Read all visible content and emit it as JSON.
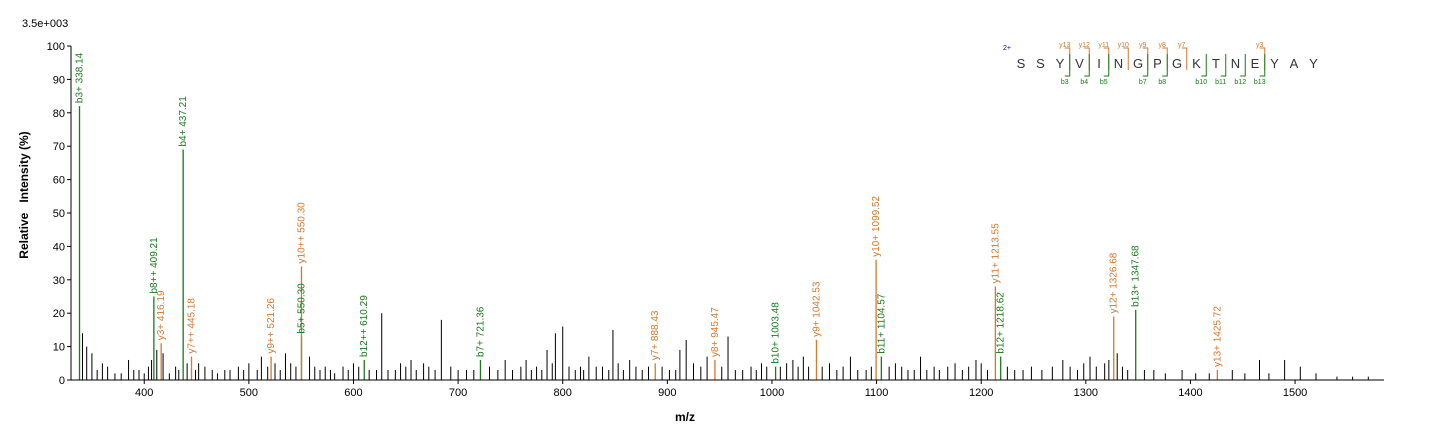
{
  "chart_data": {
    "type": "bar",
    "scale_label": "3.5e+003",
    "xlabel": "m/z",
    "ylabel": "Relative   Intensity (%)",
    "xlim": [
      330,
      1585
    ],
    "ylim": [
      0,
      100
    ],
    "x_ticks": [
      400,
      500,
      600,
      700,
      800,
      900,
      1000,
      1100,
      1200,
      1300,
      1400,
      1500
    ],
    "y_ticks": [
      0,
      10,
      20,
      30,
      40,
      50,
      60,
      70,
      80,
      90,
      100
    ],
    "colors": {
      "b_ion": "#1a7a1a",
      "y_ion": "#d9772b",
      "unassigned": "#000000",
      "charge": "#0000aa"
    },
    "annotated_peaks": [
      {
        "label": "b3+ 338.14",
        "mz": 338.14,
        "intensity": 82,
        "ion": "b"
      },
      {
        "label": "b8++ 409.21",
        "mz": 409.21,
        "intensity": 25,
        "ion": "b"
      },
      {
        "label": "y3+ 416.19",
        "mz": 416.19,
        "intensity": 11,
        "ion": "y"
      },
      {
        "label": "b4+ 437.21",
        "mz": 437.21,
        "intensity": 69,
        "ion": "b"
      },
      {
        "label": "y7++ 445.18",
        "mz": 445.18,
        "intensity": 7,
        "ion": "y"
      },
      {
        "label": "y9++ 521.26",
        "mz": 521.26,
        "intensity": 7,
        "ion": "y"
      },
      {
        "label": "b5+ 550.30",
        "mz": 550.3,
        "intensity": 13,
        "ion": "b"
      },
      {
        "label": "y10++ 550.30",
        "mz": 550.3,
        "intensity": 34,
        "ion": "y"
      },
      {
        "label": "b12++ 610.29",
        "mz": 610.29,
        "intensity": 6,
        "ion": "b"
      },
      {
        "label": "b7+ 721.36",
        "mz": 721.36,
        "intensity": 6,
        "ion": "b"
      },
      {
        "label": "y7+ 888.43",
        "mz": 888.43,
        "intensity": 5,
        "ion": "y"
      },
      {
        "label": "y8+ 945.47",
        "mz": 945.47,
        "intensity": 6,
        "ion": "y"
      },
      {
        "label": "b10+ 1003.48",
        "mz": 1003.48,
        "intensity": 4,
        "ion": "b"
      },
      {
        "label": "y9+ 1042.53",
        "mz": 1042.53,
        "intensity": 12,
        "ion": "y"
      },
      {
        "label": "y10+ 1099.52",
        "mz": 1099.52,
        "intensity": 36,
        "ion": "y"
      },
      {
        "label": "b11+ 1104.57",
        "mz": 1104.57,
        "intensity": 7,
        "ion": "b"
      },
      {
        "label": "y11+ 1213.55",
        "mz": 1213.55,
        "intensity": 28,
        "ion": "y"
      },
      {
        "label": "b12+ 1218.62",
        "mz": 1218.62,
        "intensity": 7,
        "ion": "b"
      },
      {
        "label": "y12+ 1326.68",
        "mz": 1326.68,
        "intensity": 19,
        "ion": "y"
      },
      {
        "label": "b13+ 1347.68",
        "mz": 1347.68,
        "intensity": 21,
        "ion": "b"
      },
      {
        "label": "y13+ 1425.72",
        "mz": 1425.72,
        "intensity": 3,
        "ion": "y"
      }
    ],
    "unassigned_peaks": [
      [
        341,
        14
      ],
      [
        345,
        10
      ],
      [
        350,
        8
      ],
      [
        355,
        3
      ],
      [
        360,
        5
      ],
      [
        365,
        4
      ],
      [
        372,
        2
      ],
      [
        378,
        2
      ],
      [
        385,
        6
      ],
      [
        390,
        3
      ],
      [
        395,
        3
      ],
      [
        400,
        2
      ],
      [
        404,
        4
      ],
      [
        407,
        6
      ],
      [
        412,
        9
      ],
      [
        418,
        8
      ],
      [
        424,
        2
      ],
      [
        430,
        4
      ],
      [
        433,
        3
      ],
      [
        441,
        5
      ],
      [
        449,
        3
      ],
      [
        452,
        5
      ],
      [
        458,
        4
      ],
      [
        465,
        3
      ],
      [
        470,
        2
      ],
      [
        477,
        3
      ],
      [
        482,
        3
      ],
      [
        490,
        4
      ],
      [
        495,
        3
      ],
      [
        500,
        5
      ],
      [
        508,
        3
      ],
      [
        512,
        7
      ],
      [
        518,
        4
      ],
      [
        525,
        5
      ],
      [
        530,
        3
      ],
      [
        535,
        8
      ],
      [
        540,
        5
      ],
      [
        545,
        4
      ],
      [
        558,
        7
      ],
      [
        563,
        4
      ],
      [
        568,
        3
      ],
      [
        573,
        4
      ],
      [
        578,
        3
      ],
      [
        582,
        2
      ],
      [
        590,
        4
      ],
      [
        595,
        3
      ],
      [
        600,
        5
      ],
      [
        605,
        4
      ],
      [
        615,
        3
      ],
      [
        622,
        3
      ],
      [
        627,
        20
      ],
      [
        633,
        3
      ],
      [
        640,
        3
      ],
      [
        645,
        5
      ],
      [
        650,
        4
      ],
      [
        655,
        6
      ],
      [
        660,
        3
      ],
      [
        667,
        5
      ],
      [
        672,
        4
      ],
      [
        678,
        3
      ],
      [
        684,
        18
      ],
      [
        693,
        4
      ],
      [
        700,
        3
      ],
      [
        708,
        3
      ],
      [
        715,
        3
      ],
      [
        730,
        4
      ],
      [
        738,
        3
      ],
      [
        745,
        6
      ],
      [
        752,
        3
      ],
      [
        760,
        4
      ],
      [
        765,
        6
      ],
      [
        770,
        3
      ],
      [
        775,
        4
      ],
      [
        780,
        3
      ],
      [
        785,
        9
      ],
      [
        790,
        5
      ],
      [
        793,
        14
      ],
      [
        800,
        16
      ],
      [
        806,
        4
      ],
      [
        812,
        3
      ],
      [
        817,
        4
      ],
      [
        820,
        3
      ],
      [
        825,
        7
      ],
      [
        832,
        4
      ],
      [
        838,
        4
      ],
      [
        844,
        3
      ],
      [
        848,
        15
      ],
      [
        853,
        5
      ],
      [
        858,
        3
      ],
      [
        864,
        6
      ],
      [
        870,
        4
      ],
      [
        876,
        3
      ],
      [
        882,
        4
      ],
      [
        895,
        4
      ],
      [
        902,
        3
      ],
      [
        908,
        3
      ],
      [
        912,
        9
      ],
      [
        918,
        12
      ],
      [
        925,
        5
      ],
      [
        932,
        4
      ],
      [
        938,
        7
      ],
      [
        952,
        4
      ],
      [
        958,
        13
      ],
      [
        965,
        3
      ],
      [
        972,
        3
      ],
      [
        980,
        4
      ],
      [
        985,
        3
      ],
      [
        990,
        5
      ],
      [
        995,
        4
      ],
      [
        1008,
        4
      ],
      [
        1014,
        5
      ],
      [
        1020,
        6
      ],
      [
        1025,
        4
      ],
      [
        1030,
        7
      ],
      [
        1035,
        4
      ],
      [
        1048,
        4
      ],
      [
        1055,
        5
      ],
      [
        1062,
        3
      ],
      [
        1068,
        4
      ],
      [
        1075,
        7
      ],
      [
        1082,
        3
      ],
      [
        1090,
        3
      ],
      [
        1095,
        4
      ],
      [
        1112,
        4
      ],
      [
        1118,
        5
      ],
      [
        1124,
        4
      ],
      [
        1130,
        3
      ],
      [
        1136,
        3
      ],
      [
        1142,
        7
      ],
      [
        1148,
        3
      ],
      [
        1155,
        4
      ],
      [
        1160,
        3
      ],
      [
        1168,
        4
      ],
      [
        1175,
        5
      ],
      [
        1182,
        3
      ],
      [
        1188,
        4
      ],
      [
        1195,
        6
      ],
      [
        1200,
        5
      ],
      [
        1206,
        3
      ],
      [
        1225,
        4
      ],
      [
        1232,
        3
      ],
      [
        1240,
        3
      ],
      [
        1248,
        4
      ],
      [
        1258,
        3
      ],
      [
        1268,
        4
      ],
      [
        1278,
        6
      ],
      [
        1285,
        4
      ],
      [
        1292,
        3
      ],
      [
        1298,
        5
      ],
      [
        1304,
        7
      ],
      [
        1310,
        4
      ],
      [
        1318,
        5
      ],
      [
        1322,
        6
      ],
      [
        1330,
        8
      ],
      [
        1335,
        4
      ],
      [
        1340,
        3
      ],
      [
        1356,
        3
      ],
      [
        1365,
        3
      ],
      [
        1376,
        2
      ],
      [
        1392,
        3
      ],
      [
        1405,
        2
      ],
      [
        1418,
        2
      ],
      [
        1440,
        3
      ],
      [
        1452,
        2
      ],
      [
        1466,
        6
      ],
      [
        1475,
        2
      ],
      [
        1490,
        6
      ],
      [
        1505,
        4
      ],
      [
        1520,
        2
      ],
      [
        1540,
        1
      ],
      [
        1555,
        1
      ],
      [
        1570,
        1
      ]
    ],
    "sequence": {
      "charge_label": "2+",
      "residues": [
        "S",
        "S",
        "Y",
        "V",
        "I",
        "N",
        "G",
        "P",
        "G",
        "K",
        "T",
        "N",
        "E",
        "Y",
        "A",
        "Y"
      ],
      "y_labels": [
        {
          "text": "y13",
          "after": 3
        },
        {
          "text": "y12",
          "after": 4
        },
        {
          "text": "y11",
          "after": 5
        },
        {
          "text": "y10",
          "after": 6
        },
        {
          "text": "y9",
          "after": 7
        },
        {
          "text": "y8",
          "after": 8
        },
        {
          "text": "y7",
          "after": 9
        },
        {
          "text": "y3",
          "after": 13
        }
      ],
      "b_labels": [
        {
          "text": "b3",
          "after": 3
        },
        {
          "text": "b4",
          "after": 4
        },
        {
          "text": "b5",
          "after": 5
        },
        {
          "text": "b7",
          "after": 7
        },
        {
          "text": "b8",
          "after": 8
        },
        {
          "text": "b10",
          "after": 10
        },
        {
          "text": "b11",
          "after": 11
        },
        {
          "text": "b12",
          "after": 12
        },
        {
          "text": "b13",
          "after": 13
        }
      ]
    }
  }
}
